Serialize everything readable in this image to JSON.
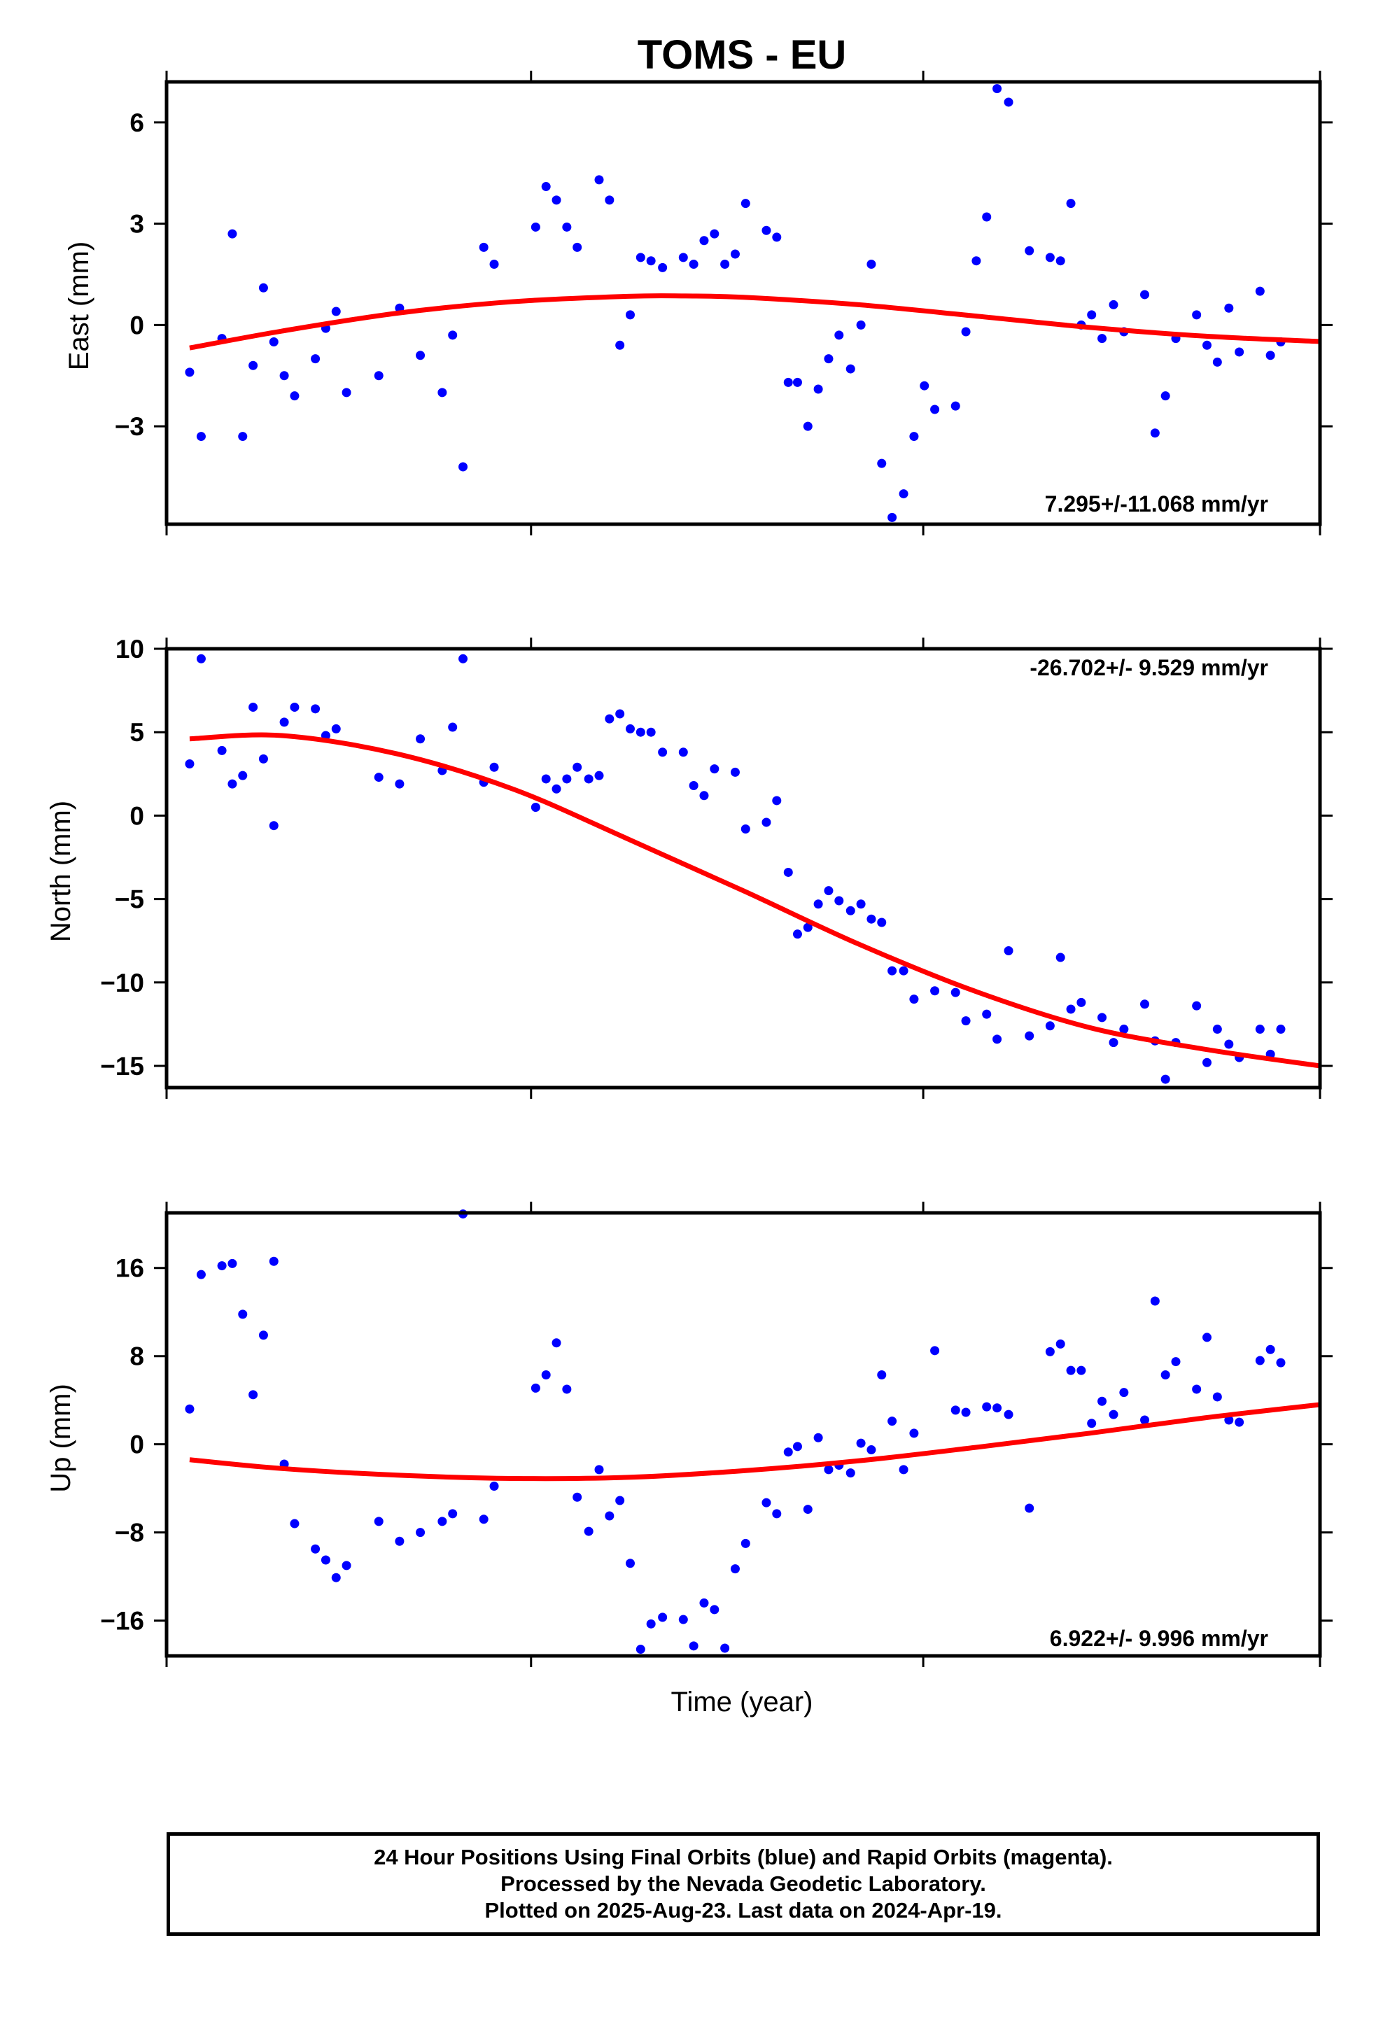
{
  "title": "TOMS - EU",
  "xlabel": "Time (year)",
  "footer": {
    "line1": "24 Hour Positions Using Final Orbits (blue) and Rapid Orbits (magenta).",
    "line2": "Processed by the Nevada Geodetic Laboratory.",
    "line3": "Plotted on 2025-Aug-23. Last data on 2024-Apr-19."
  },
  "colors": {
    "points": "#0000ff",
    "fit": "#ff0000",
    "frame": "#000000"
  },
  "chart_data": [
    {
      "type": "scatter",
      "ylabel": "East (mm)",
      "rate_label": "7.295+/-11.068 mm/yr",
      "ylim": [
        -5.9,
        7.2
      ],
      "yticks": [
        -3,
        0,
        3,
        6
      ],
      "ytick_labels": [
        "−3",
        "0",
        "3",
        "6"
      ],
      "xlim": [
        0,
        1
      ],
      "series": [
        {
          "x": [
            0.02,
            0.03,
            0.048,
            0.057,
            0.066,
            0.075,
            0.084,
            0.093,
            0.102,
            0.111,
            0.129,
            0.138,
            0.147,
            0.156,
            0.184,
            0.202,
            0.22,
            0.239,
            0.248,
            0.257,
            0.275,
            0.284,
            0.32,
            0.329,
            0.338,
            0.347,
            0.356,
            0.375,
            0.384,
            0.393,
            0.402,
            0.411,
            0.42,
            0.43,
            0.448,
            0.457,
            0.466,
            0.475,
            0.484,
            0.493,
            0.502,
            0.52,
            0.529,
            0.539,
            0.547,
            0.556,
            0.565,
            0.574,
            0.583,
            0.593,
            0.602,
            0.611,
            0.62,
            0.629,
            0.639,
            0.648,
            0.657,
            0.666,
            0.684,
            0.693,
            0.702,
            0.711,
            0.72,
            0.73,
            0.748,
            0.766,
            0.775,
            0.784,
            0.793,
            0.802,
            0.811,
            0.821,
            0.83,
            0.848,
            0.857,
            0.866,
            0.875,
            0.893,
            0.902,
            0.911,
            0.921,
            0.93,
            0.948,
            0.957,
            0.966
          ],
          "y": [
            -1.4,
            -3.3,
            -0.4,
            2.7,
            -3.3,
            -1.2,
            1.1,
            -0.5,
            -1.5,
            -2.1,
            -1.0,
            -0.1,
            0.4,
            -2.0,
            -1.5,
            0.5,
            -0.9,
            -2.0,
            -0.3,
            -4.2,
            2.3,
            1.8,
            2.9,
            4.1,
            3.7,
            2.9,
            2.3,
            4.3,
            3.7,
            -0.6,
            0.3,
            2.0,
            1.9,
            1.7,
            2.0,
            1.8,
            2.5,
            2.7,
            1.8,
            2.1,
            3.6,
            2.8,
            2.6,
            -1.7,
            -1.7,
            -3.0,
            -1.9,
            -1.0,
            -0.3,
            -1.3,
            0.0,
            1.8,
            -4.1,
            -5.7,
            -5.0,
            -3.3,
            -1.8,
            -2.5,
            -2.4,
            -0.2,
            1.9,
            3.2,
            7.0,
            6.6,
            2.2,
            2.0,
            1.9,
            3.6,
            0.0,
            0.3,
            -0.4,
            0.6,
            -0.2,
            0.9,
            -3.2,
            -2.1,
            -0.4,
            0.3,
            -0.6,
            -1.1,
            0.5,
            -0.8,
            1.0,
            -0.9,
            -0.5
          ],
          "name": ""
        }
      ],
      "fit": {
        "x": [
          0.02,
          0.1,
          0.2,
          0.3,
          0.4,
          0.45,
          0.5,
          0.6,
          0.7,
          0.8,
          0.9,
          1.0
        ],
        "y": [
          -0.68,
          -0.18,
          0.35,
          0.69,
          0.85,
          0.86,
          0.82,
          0.6,
          0.27,
          -0.07,
          -0.33,
          -0.49
        ]
      }
    },
    {
      "type": "scatter",
      "ylabel": "North (mm)",
      "rate_label": "-26.702+/- 9.529 mm/yr",
      "ylim": [
        -16.3,
        10
      ],
      "yticks": [
        -15,
        -10,
        -5,
        0,
        5,
        10
      ],
      "ytick_labels": [
        "−15",
        "−10",
        "−5",
        "0",
        "5",
        "10"
      ],
      "xlim": [
        0,
        1
      ],
      "series": [
        {
          "x": [
            0.02,
            0.03,
            0.048,
            0.057,
            0.066,
            0.075,
            0.084,
            0.093,
            0.102,
            0.111,
            0.129,
            0.138,
            0.147,
            0.184,
            0.202,
            0.22,
            0.239,
            0.248,
            0.257,
            0.275,
            0.284,
            0.32,
            0.329,
            0.338,
            0.347,
            0.356,
            0.366,
            0.375,
            0.384,
            0.393,
            0.402,
            0.411,
            0.42,
            0.43,
            0.448,
            0.457,
            0.466,
            0.475,
            0.493,
            0.502,
            0.52,
            0.529,
            0.539,
            0.547,
            0.556,
            0.565,
            0.574,
            0.583,
            0.593,
            0.602,
            0.611,
            0.62,
            0.629,
            0.639,
            0.648,
            0.666,
            0.684,
            0.693,
            0.711,
            0.72,
            0.73,
            0.748,
            0.766,
            0.775,
            0.784,
            0.793,
            0.811,
            0.821,
            0.83,
            0.848,
            0.857,
            0.866,
            0.875,
            0.893,
            0.902,
            0.911,
            0.921,
            0.93,
            0.948,
            0.957,
            0.966
          ],
          "y": [
            3.1,
            9.4,
            3.9,
            1.9,
            2.4,
            6.5,
            3.4,
            -0.6,
            5.6,
            6.5,
            6.4,
            4.8,
            5.2,
            2.3,
            1.9,
            4.6,
            2.7,
            5.3,
            9.4,
            2.0,
            2.9,
            0.5,
            2.2,
            1.6,
            2.2,
            2.9,
            2.2,
            2.4,
            5.8,
            6.1,
            5.2,
            5.0,
            5.0,
            3.8,
            3.8,
            1.8,
            1.2,
            2.8,
            2.6,
            -0.8,
            -0.4,
            0.9,
            -3.4,
            -7.1,
            -6.7,
            -5.3,
            -4.5,
            -5.1,
            -5.7,
            -5.3,
            -6.2,
            -6.4,
            -9.3,
            -9.3,
            -11.0,
            -10.5,
            -10.6,
            -12.3,
            -11.9,
            -13.4,
            -8.1,
            -13.2,
            -12.6,
            -8.5,
            -11.6,
            -11.2,
            -12.1,
            -13.6,
            -12.8,
            -11.3,
            -13.5,
            -15.8,
            -13.6,
            -11.4,
            -14.8,
            -12.8,
            -13.7,
            -14.5,
            -12.8,
            -14.3,
            -12.8
          ],
          "name": ""
        }
      ],
      "fit": {
        "x": [
          0.02,
          0.1,
          0.2,
          0.3,
          0.4,
          0.5,
          0.6,
          0.7,
          0.8,
          0.9,
          1.0
        ],
        "y": [
          4.6,
          4.8,
          3.7,
          1.6,
          -1.4,
          -4.5,
          -7.7,
          -10.5,
          -12.7,
          -14.0,
          -15.0
        ]
      }
    },
    {
      "type": "scatter",
      "ylabel": "Up (mm)",
      "rate_label": "6.922+/- 9.996 mm/yr",
      "ylim": [
        -19.2,
        21
      ],
      "yticks": [
        -16,
        -8,
        0,
        8,
        16
      ],
      "ytick_labels": [
        "−16",
        "−8",
        "0",
        "8",
        "16"
      ],
      "xlim": [
        0,
        1
      ],
      "series": [
        {
          "x": [
            0.02,
            0.03,
            0.048,
            0.057,
            0.066,
            0.075,
            0.084,
            0.093,
            0.102,
            0.111,
            0.129,
            0.138,
            0.147,
            0.156,
            0.184,
            0.202,
            0.22,
            0.239,
            0.248,
            0.257,
            0.275,
            0.284,
            0.32,
            0.329,
            0.338,
            0.347,
            0.356,
            0.366,
            0.375,
            0.384,
            0.393,
            0.402,
            0.411,
            0.42,
            0.43,
            0.448,
            0.457,
            0.466,
            0.475,
            0.484,
            0.493,
            0.502,
            0.52,
            0.529,
            0.539,
            0.547,
            0.556,
            0.565,
            0.574,
            0.583,
            0.593,
            0.602,
            0.611,
            0.62,
            0.629,
            0.639,
            0.648,
            0.666,
            0.684,
            0.693,
            0.711,
            0.72,
            0.73,
            0.748,
            0.766,
            0.775,
            0.784,
            0.793,
            0.802,
            0.811,
            0.821,
            0.83,
            0.848,
            0.857,
            0.866,
            0.875,
            0.893,
            0.902,
            0.911,
            0.921,
            0.93,
            0.948,
            0.957,
            0.966
          ],
          "y": [
            3.2,
            15.4,
            16.2,
            16.4,
            11.8,
            4.5,
            9.9,
            16.6,
            -1.8,
            -7.2,
            -9.5,
            -10.5,
            -12.1,
            -11.0,
            -7.0,
            -8.8,
            -8.0,
            -7.0,
            -6.3,
            20.9,
            -6.8,
            -3.8,
            5.1,
            6.3,
            9.2,
            5.0,
            -4.8,
            -7.9,
            -2.3,
            -6.5,
            -5.1,
            -10.8,
            -18.6,
            -16.3,
            -15.7,
            -15.9,
            -18.3,
            -14.4,
            -15.0,
            -18.5,
            -11.3,
            -9.0,
            -5.3,
            -6.3,
            -0.7,
            -0.2,
            -5.9,
            0.6,
            -2.3,
            -1.9,
            -2.6,
            0.1,
            -0.5,
            6.3,
            2.1,
            -2.3,
            1.0,
            8.5,
            3.1,
            2.9,
            3.4,
            3.3,
            2.7,
            -5.8,
            8.4,
            9.1,
            6.7,
            6.7,
            1.9,
            3.9,
            2.7,
            4.7,
            2.2,
            13.0,
            6.3,
            7.5,
            5.0,
            9.7,
            4.3,
            2.2,
            2.0,
            7.6,
            8.6,
            7.4
          ],
          "name": ""
        }
      ],
      "fit": {
        "x": [
          0.02,
          0.1,
          0.2,
          0.3,
          0.4,
          0.5,
          0.6,
          0.7,
          0.8,
          0.9,
          1.0
        ],
        "y": [
          -1.4,
          -2.2,
          -2.8,
          -3.1,
          -3.0,
          -2.4,
          -1.5,
          -0.3,
          1.0,
          2.4,
          3.6
        ]
      }
    }
  ]
}
